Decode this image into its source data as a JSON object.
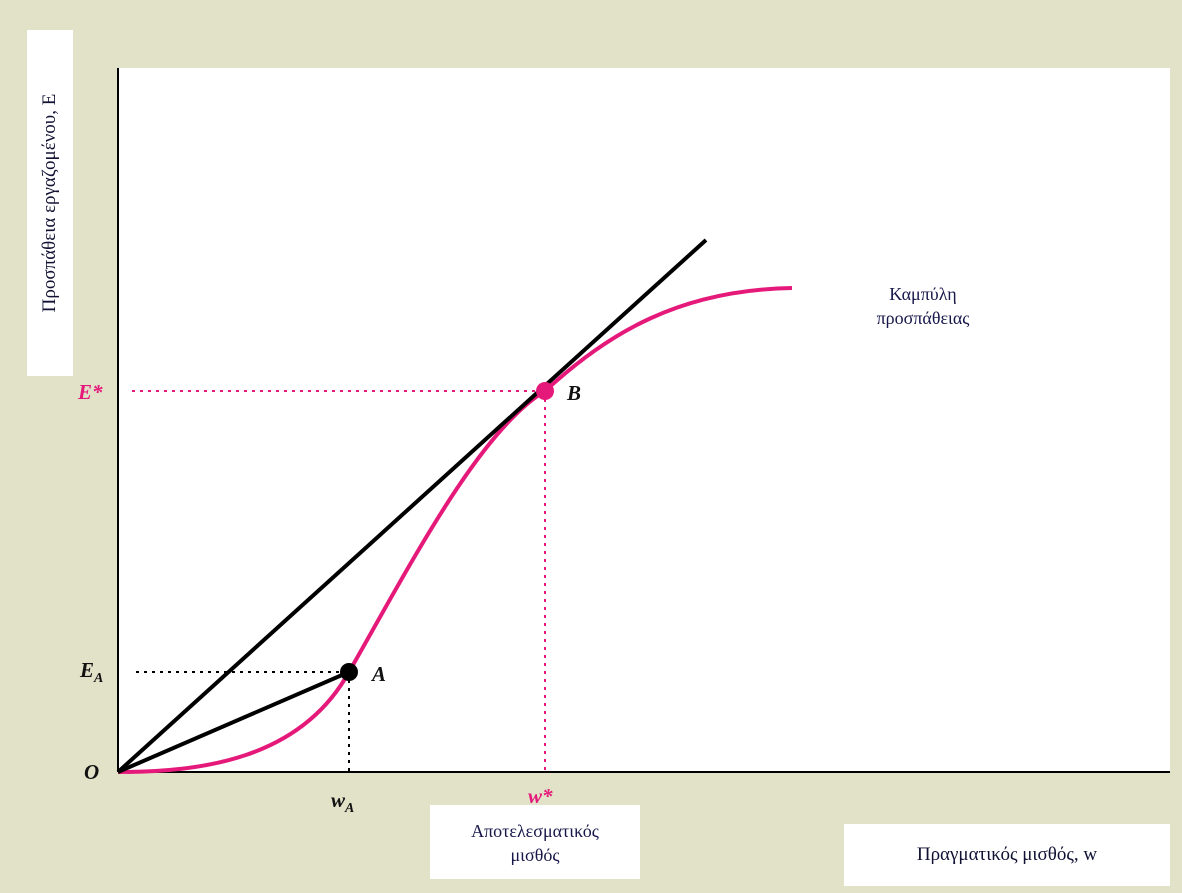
{
  "axes": {
    "y_label": "Προσπάθεια εργαζομένου, E",
    "x_label": "Πραγματικός μισθός, w",
    "origin": "O"
  },
  "curve_label": [
    "Καμπύλη",
    "προσπάθειας"
  ],
  "efficiency_wage_tag": [
    "Αποτελεσματικός",
    "μισθός"
  ],
  "points": {
    "A": {
      "label": "A",
      "x_tick": "w",
      "x_sub": "A",
      "y_tick": "E",
      "y_sub": "A"
    },
    "B": {
      "label": "B",
      "x_tick": "w*",
      "y_tick": "E*"
    }
  },
  "colors": {
    "curve": "#e5197a",
    "lines": "#000000",
    "background": "#e2e2c9",
    "label_text": "#17174a"
  }
}
